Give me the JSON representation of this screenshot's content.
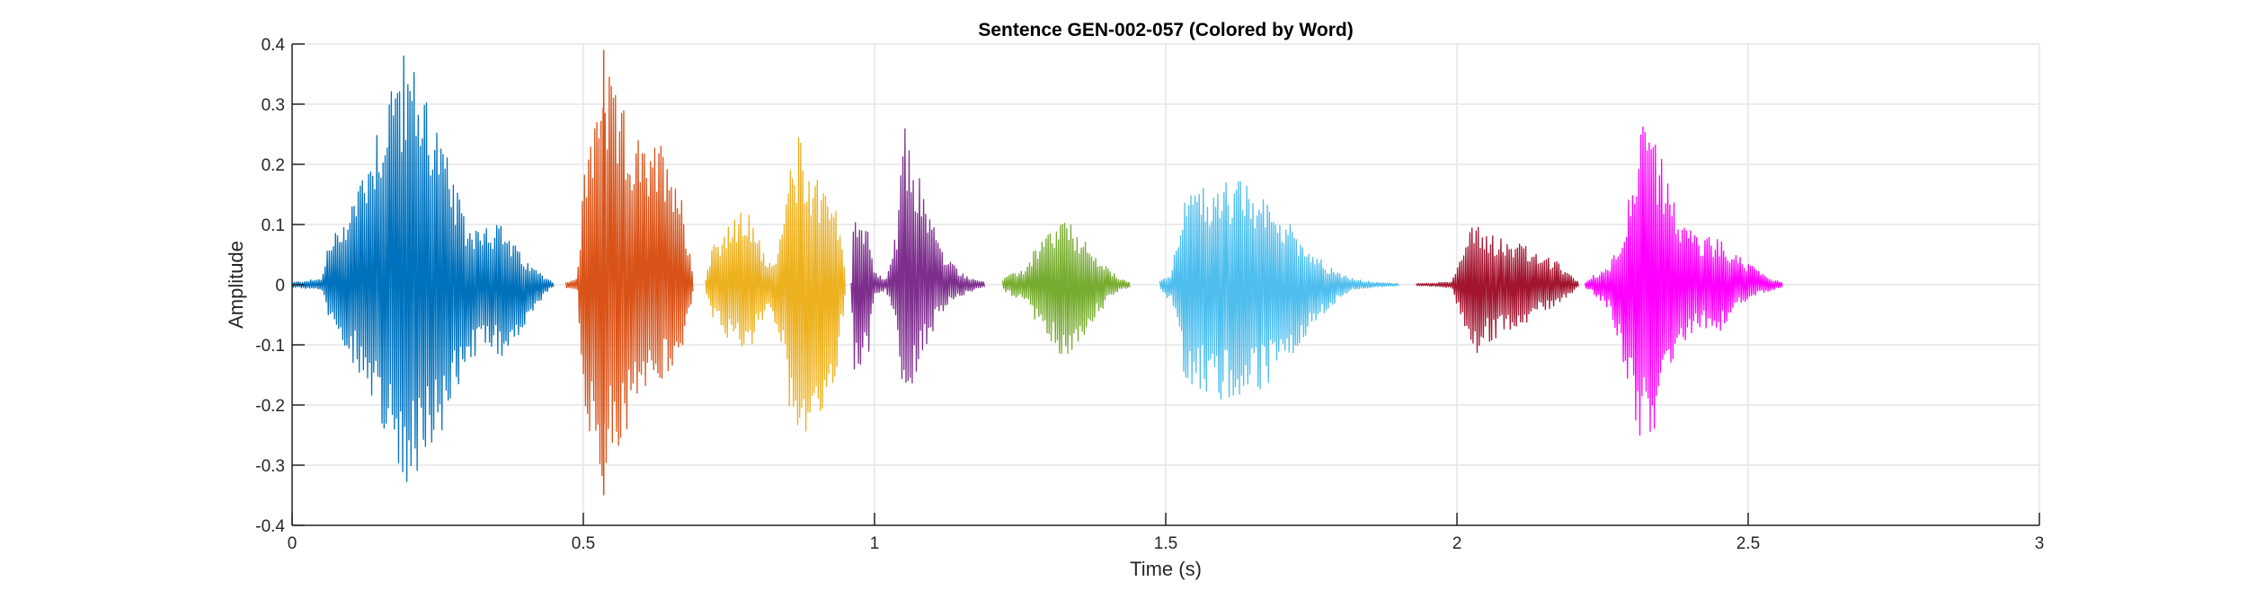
{
  "chart_data": {
    "type": "line",
    "title": "Sentence GEN-002-057 (Colored by Word)",
    "xlabel": "Time (s)",
    "ylabel": "Amplitude",
    "xlim": [
      0,
      3
    ],
    "ylim": [
      -0.4,
      0.4
    ],
    "x_ticks": [
      "0",
      "0.5",
      "1",
      "1.5",
      "2",
      "2.5",
      "3"
    ],
    "y_ticks": [
      "0.4",
      "0.3",
      "0.2",
      "0.1",
      "0",
      "-0.1",
      "-0.2",
      "-0.3",
      "-0.4"
    ],
    "grid": true,
    "legend": "none",
    "series": [
      {
        "color": "#0072BD",
        "start": 0.0,
        "end": 0.45,
        "envelope_x": [
          0.0,
          0.05,
          0.06,
          0.1,
          0.15,
          0.18,
          0.2,
          0.23,
          0.27,
          0.3,
          0.33,
          0.36,
          0.4,
          0.44,
          0.45
        ],
        "envelope_max": [
          0.004,
          0.01,
          0.06,
          0.14,
          0.29,
          0.39,
          0.38,
          0.34,
          0.2,
          0.1,
          0.11,
          0.1,
          0.04,
          0.01,
          0.003
        ],
        "envelope_min": [
          -0.004,
          -0.01,
          -0.05,
          -0.12,
          -0.22,
          -0.3,
          -0.34,
          -0.29,
          -0.22,
          -0.14,
          -0.11,
          -0.12,
          -0.07,
          -0.01,
          -0.003
        ]
      },
      {
        "color": "#D95319",
        "start": 0.47,
        "end": 0.69,
        "envelope_x": [
          0.47,
          0.49,
          0.5,
          0.52,
          0.53,
          0.55,
          0.58,
          0.61,
          0.64,
          0.66,
          0.68,
          0.69
        ],
        "envelope_max": [
          0.005,
          0.01,
          0.18,
          0.3,
          0.39,
          0.33,
          0.27,
          0.22,
          0.25,
          0.2,
          0.08,
          0.01
        ],
        "envelope_min": [
          -0.005,
          -0.01,
          -0.2,
          -0.28,
          -0.35,
          -0.29,
          -0.24,
          -0.18,
          -0.16,
          -0.15,
          -0.06,
          -0.01
        ],
        "peak_x": 0.535,
        "peak_max": 0.39,
        "peak_min": -0.35
      },
      {
        "color": "#EDB120",
        "start": 0.71,
        "end": 0.95,
        "envelope_x": [
          0.71,
          0.72,
          0.75,
          0.78,
          0.8,
          0.82,
          0.84,
          0.85,
          0.87,
          0.89,
          0.91,
          0.93,
          0.95
        ],
        "envelope_max": [
          0.01,
          0.07,
          0.1,
          0.13,
          0.08,
          0.04,
          0.08,
          0.18,
          0.25,
          0.2,
          0.18,
          0.16,
          0.02
        ],
        "envelope_min": [
          -0.01,
          -0.06,
          -0.1,
          -0.12,
          -0.08,
          -0.04,
          -0.1,
          -0.2,
          -0.24,
          -0.25,
          -0.22,
          -0.2,
          -0.02
        ]
      },
      {
        "color": "#7E2F8E",
        "start": 0.96,
        "end": 1.19,
        "envelope_x": [
          0.96,
          0.965,
          0.99,
          1.0,
          1.02,
          1.04,
          1.05,
          1.06,
          1.09,
          1.12,
          1.15,
          1.17,
          1.19
        ],
        "envelope_max": [
          0.005,
          0.14,
          0.1,
          0.02,
          0.01,
          0.1,
          0.27,
          0.24,
          0.14,
          0.05,
          0.02,
          0.01,
          0.004
        ],
        "envelope_min": [
          -0.005,
          -0.15,
          -0.12,
          -0.02,
          -0.01,
          -0.08,
          -0.21,
          -0.2,
          -0.1,
          -0.04,
          -0.02,
          -0.01,
          -0.004
        ]
      },
      {
        "color": "#77AC30",
        "start": 1.22,
        "end": 1.44,
        "envelope_x": [
          1.22,
          1.24,
          1.26,
          1.28,
          1.3,
          1.32,
          1.34,
          1.37,
          1.4,
          1.42,
          1.44
        ],
        "envelope_max": [
          0.01,
          0.02,
          0.03,
          0.07,
          0.09,
          0.11,
          0.1,
          0.06,
          0.03,
          0.01,
          0.004
        ],
        "envelope_min": [
          -0.01,
          -0.02,
          -0.03,
          -0.07,
          -0.1,
          -0.13,
          -0.12,
          -0.07,
          -0.03,
          -0.01,
          -0.004
        ]
      },
      {
        "color": "#4DBEEE",
        "start": 1.49,
        "end": 1.9,
        "envelope_x": [
          1.49,
          1.51,
          1.53,
          1.55,
          1.58,
          1.62,
          1.66,
          1.7,
          1.74,
          1.78,
          1.82,
          1.86,
          1.9
        ],
        "envelope_max": [
          0.01,
          0.02,
          0.15,
          0.16,
          0.17,
          0.18,
          0.15,
          0.12,
          0.07,
          0.03,
          0.01,
          0.004,
          0.002
        ],
        "envelope_min": [
          -0.01,
          -0.03,
          -0.15,
          -0.17,
          -0.19,
          -0.2,
          -0.18,
          -0.14,
          -0.09,
          -0.04,
          -0.01,
          -0.004,
          -0.002
        ]
      },
      {
        "color": "#A2142F",
        "start": 1.93,
        "end": 2.21,
        "envelope_x": [
          1.93,
          1.96,
          1.99,
          2.01,
          2.03,
          2.05,
          2.08,
          2.11,
          2.14,
          2.17,
          2.19,
          2.21
        ],
        "envelope_max": [
          0.002,
          0.003,
          0.005,
          0.06,
          0.12,
          0.09,
          0.08,
          0.07,
          0.05,
          0.04,
          0.02,
          0.003
        ],
        "envelope_min": [
          -0.002,
          -0.003,
          -0.005,
          -0.06,
          -0.12,
          -0.1,
          -0.08,
          -0.07,
          -0.05,
          -0.04,
          -0.02,
          -0.003
        ]
      },
      {
        "color": "#FF00FF",
        "start": 2.22,
        "end": 2.56,
        "envelope_x": [
          2.22,
          2.24,
          2.26,
          2.28,
          2.3,
          2.32,
          2.34,
          2.36,
          2.39,
          2.42,
          2.45,
          2.48,
          2.51,
          2.54,
          2.56
        ],
        "envelope_max": [
          0.005,
          0.02,
          0.03,
          0.08,
          0.18,
          0.27,
          0.25,
          0.18,
          0.1,
          0.08,
          0.08,
          0.05,
          0.03,
          0.01,
          0.003
        ],
        "envelope_min": [
          -0.005,
          -0.02,
          -0.04,
          -0.1,
          -0.2,
          -0.28,
          -0.25,
          -0.18,
          -0.1,
          -0.07,
          -0.08,
          -0.04,
          -0.02,
          -0.01,
          -0.003
        ]
      }
    ]
  }
}
